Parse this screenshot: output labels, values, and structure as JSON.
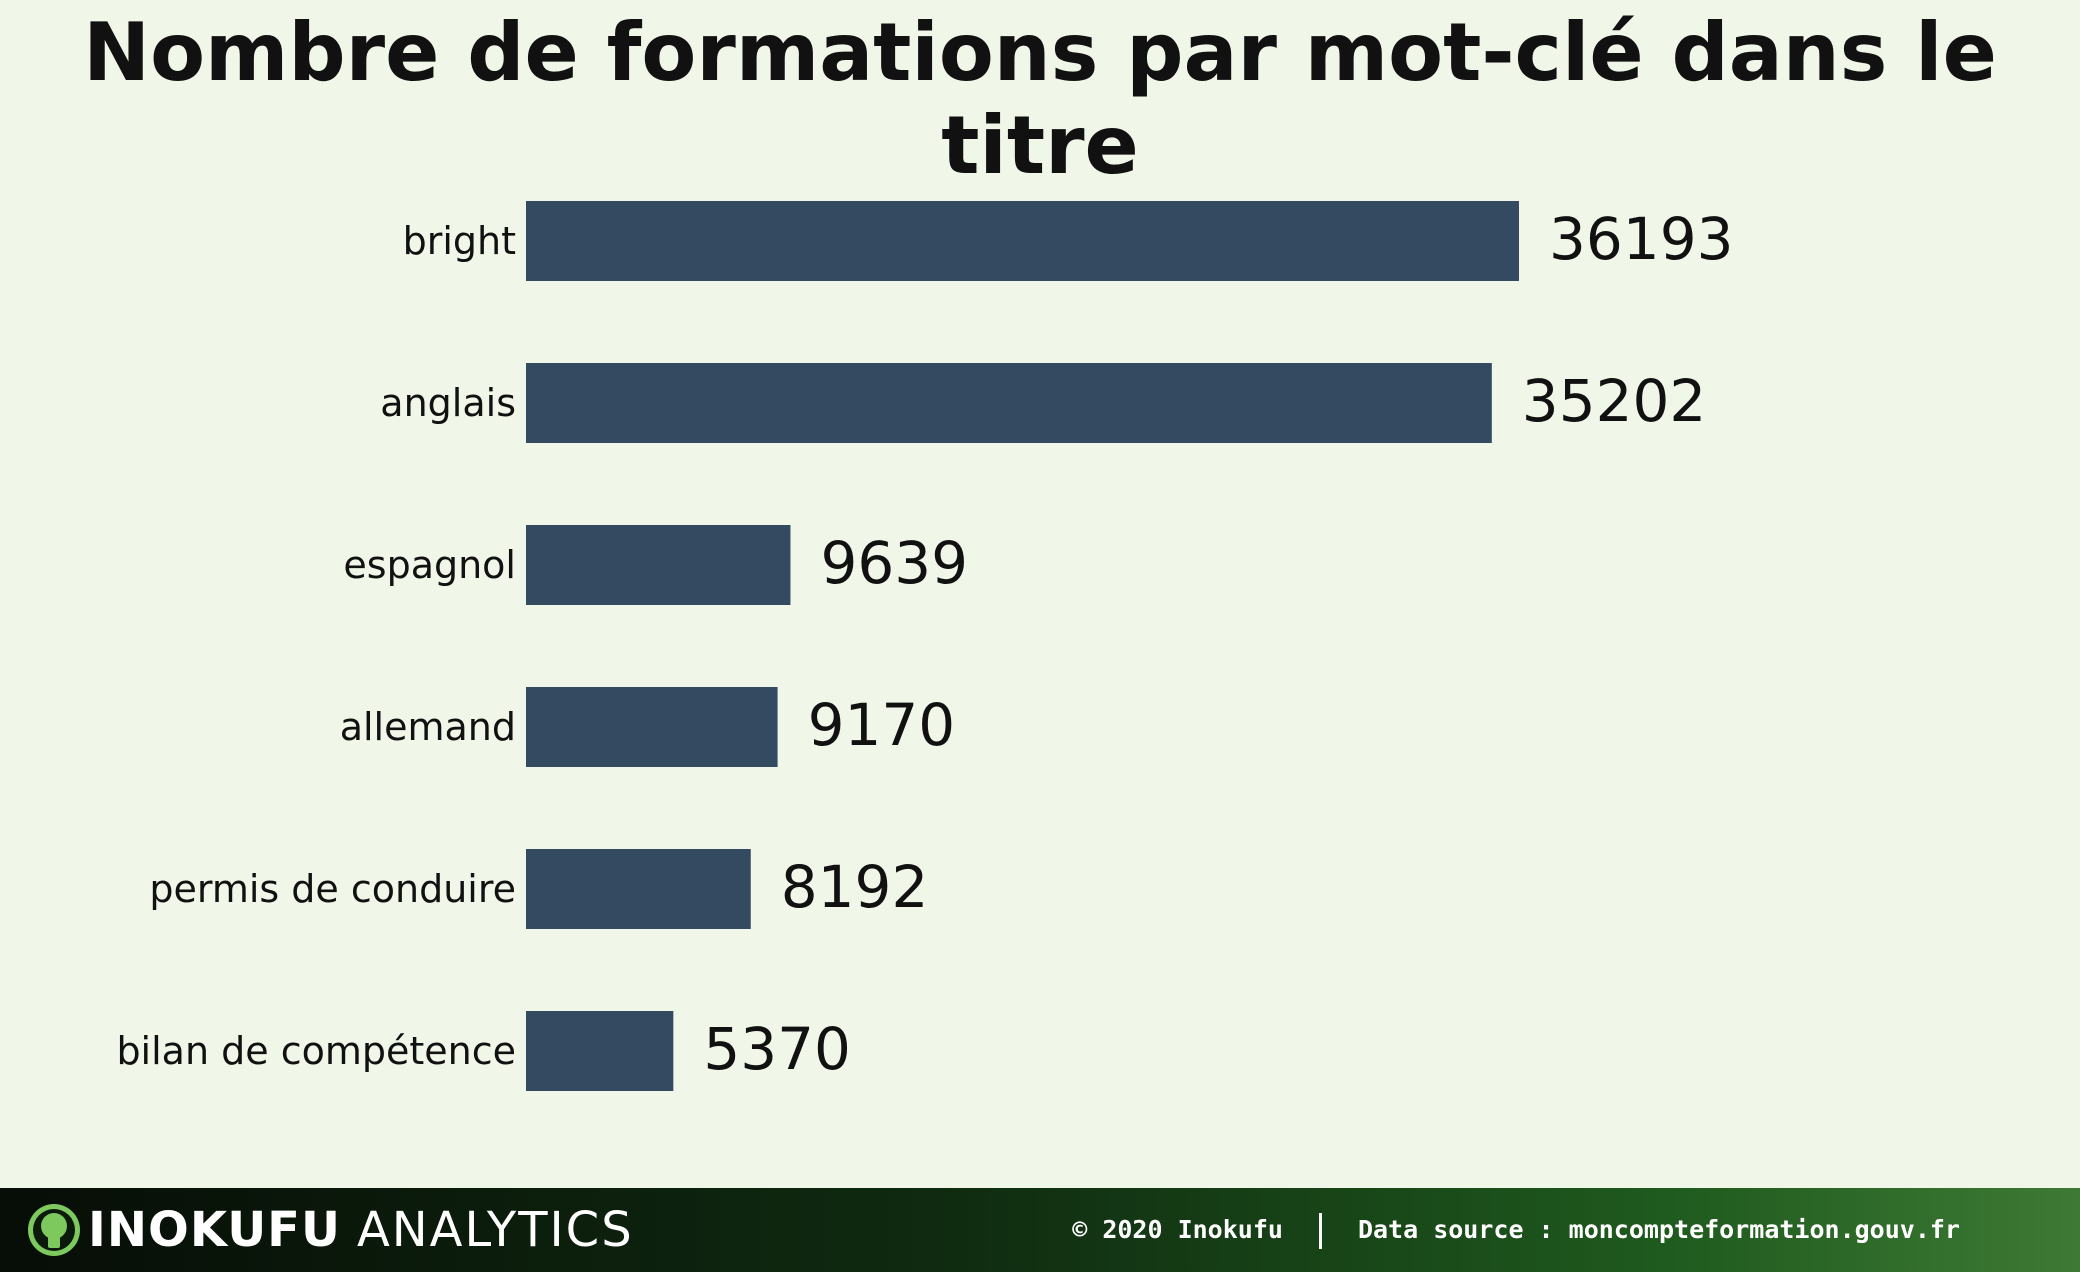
{
  "chart_data": {
    "type": "bar",
    "orientation": "horizontal",
    "title": "Nombre de formations par mot-clé dans le titre",
    "categories": [
      "bright",
      "anglais",
      "espagnol",
      "allemand",
      "permis de conduire",
      "bilan de compétence"
    ],
    "values": [
      36193,
      35202,
      9639,
      9170,
      8192,
      5370
    ],
    "data_labels": [
      "36193",
      "35202",
      "9639",
      "9170",
      "8192",
      "5370"
    ],
    "xlim": [
      0,
      36193
    ],
    "grid": false,
    "bar_color": "#344a61"
  },
  "footer": {
    "brand_strong": "INOKUFU",
    "brand_light": "ANALYTICS",
    "copyright": "© 2020 Inokufu",
    "data_source": "Data source : moncompteformation.gouv.fr"
  },
  "colors": {
    "background": "#f0f6e8",
    "bar": "#344a61",
    "logo": "#7dc95e"
  }
}
